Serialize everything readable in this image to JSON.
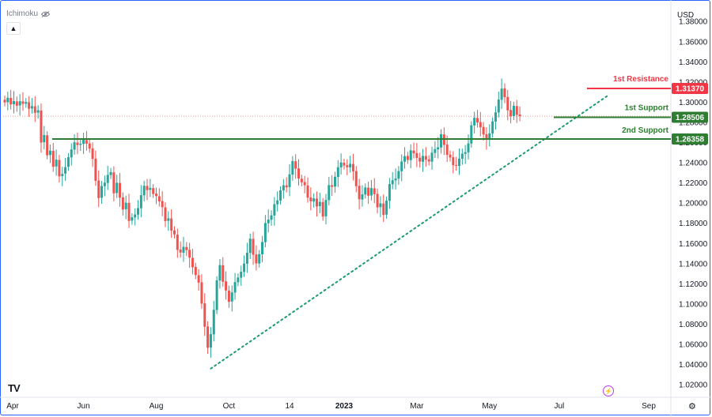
{
  "legend": {
    "label": "Ichimoku",
    "eye_icon": "eye-icon"
  },
  "collapse_icon": "chevron-up-icon",
  "currency": "USD",
  "logo": "TV",
  "bolt_icon": "lightning-icon",
  "gear_icon": "gear-icon",
  "colors": {
    "up": "#26a69a",
    "down": "#ef5350",
    "resistance": "#f23645",
    "support": "#2e7d32",
    "trend": "#1b9a70",
    "current_price_line": "#ef9a9a"
  },
  "chart_data": {
    "type": "candlestick",
    "x_ticks": [
      "Apr",
      "Jun",
      "Aug",
      "Oct",
      "14",
      "2023",
      "Mar",
      "May",
      "Jul",
      "Sep"
    ],
    "y_ticks": [
      "1.38000",
      "1.36000",
      "1.34000",
      "1.32000",
      "1.30000",
      "1.28000",
      "1.26000",
      "1.24000",
      "1.22000",
      "1.20000",
      "1.18000",
      "1.16000",
      "1.14000",
      "1.12000",
      "1.10000",
      "1.08000",
      "1.06000",
      "1.04000",
      "1.02000"
    ],
    "ylim": [
      1.0115,
      1.3935
    ],
    "levels": [
      {
        "name": "1st Resistance",
        "price_label": "1.31370",
        "value": 1.3137,
        "role": "resistance"
      },
      {
        "name": "1st Support",
        "price_label": "1.28506",
        "value": 1.28506,
        "role": "support"
      },
      {
        "name": "2nd Support",
        "price_label": "1.26358",
        "value": 1.26358,
        "role": "support"
      }
    ],
    "trendline": {
      "from": {
        "x_index": 68,
        "y": 1.036
      },
      "to": {
        "x_index": 199,
        "y": 1.3065
      }
    },
    "current_price": 1.2862,
    "x_count": 200,
    "closes": [
      1.2998,
      1.3045,
      1.2978,
      1.3011,
      1.2965,
      1.301,
      1.2984,
      1.3002,
      1.2935,
      1.2962,
      1.2895,
      1.2921,
      1.26,
      1.2675,
      1.2474,
      1.252,
      1.236,
      1.2431,
      1.2265,
      1.229,
      1.2357,
      1.2455,
      1.2532,
      1.2603,
      1.2576,
      1.2589,
      1.2628,
      1.259,
      1.254,
      1.2438,
      1.2221,
      1.205,
      1.217,
      1.2203,
      1.228,
      1.2308,
      1.2097,
      1.2202,
      1.2054,
      1.1937,
      1.2004,
      1.1823,
      1.186,
      1.1888,
      1.1951,
      1.2079,
      1.2172,
      1.2129,
      1.2151,
      1.2091,
      1.207,
      1.2017,
      1.196,
      1.1822,
      1.185,
      1.1727,
      1.169,
      1.1537,
      1.151,
      1.1567,
      1.1534,
      1.146,
      1.1365,
      1.1287,
      1.1212,
      1.1004,
      1.0775,
      1.0566,
      1.0701,
      1.0942,
      1.1235,
      1.1386,
      1.1221,
      1.1134,
      1.1022,
      1.1115,
      1.1218,
      1.1263,
      1.132,
      1.1401,
      1.1508,
      1.1648,
      1.1488,
      1.1403,
      1.1495,
      1.1615,
      1.1803,
      1.1837,
      1.1879,
      1.199,
      1.2027,
      1.2127,
      1.2178,
      1.2156,
      1.2285,
      1.2417,
      1.2341,
      1.2244,
      1.2206,
      1.2177,
      1.2054,
      1.2018,
      1.2047,
      1.1967,
      1.2013,
      1.1866,
      1.2031,
      1.2179,
      1.2161,
      1.2261,
      1.2356,
      1.2403,
      1.2373,
      1.2356,
      1.239,
      1.2315,
      1.2168,
      1.2038,
      1.2087,
      1.2155,
      1.2073,
      1.2149,
      1.2089,
      1.1958,
      1.1998,
      1.1883,
      1.2025,
      1.2189,
      1.2227,
      1.2244,
      1.2318,
      1.2413,
      1.2465,
      1.2428,
      1.2523,
      1.2493,
      1.2447,
      1.2412,
      1.2468,
      1.2431,
      1.2413,
      1.25,
      1.2535,
      1.2553,
      1.2683,
      1.2577,
      1.2478,
      1.2452,
      1.2375,
      1.2371,
      1.2442,
      1.249,
      1.2505,
      1.2592,
      1.2772,
      1.2846,
      1.28,
      1.2752,
      1.268,
      1.263,
      1.2692,
      1.281,
      1.29,
      1.3026,
      1.3135,
      1.305,
      1.292,
      1.286,
      1.2965,
      1.2875,
      1.2862
    ],
    "opens": [
      1.3025,
      1.3,
      1.3043,
      1.298,
      1.3008,
      1.2968,
      1.3008,
      1.2985,
      1.3,
      1.2938,
      1.296,
      1.2897,
      1.2918,
      1.2603,
      1.2672,
      1.2477,
      1.2518,
      1.2363,
      1.2428,
      1.2268,
      1.2292,
      1.236,
      1.2453,
      1.253,
      1.26,
      1.2578,
      1.2587,
      1.2625,
      1.2592,
      1.2543,
      1.2441,
      1.2224,
      1.2053,
      1.2168,
      1.22,
      1.2278,
      1.2305,
      1.21,
      1.22,
      1.2057,
      1.194,
      1.2002,
      1.1826,
      1.1858,
      1.1886,
      1.1949,
      1.2077,
      1.217,
      1.2132,
      1.2149,
      1.2094,
      1.2068,
      1.202,
      1.1958,
      1.1825,
      1.1848,
      1.173,
      1.1688,
      1.154,
      1.1508,
      1.1565,
      1.1537,
      1.1458,
      1.1368,
      1.1285,
      1.1215,
      1.1007,
      1.0778,
      1.0569,
      1.0699,
      1.094,
      1.1233,
      1.1384,
      1.1224,
      1.1132,
      1.1025,
      1.1113,
      1.1216,
      1.1261,
      1.1318,
      1.1399,
      1.1506,
      1.1646,
      1.1491,
      1.1401,
      1.1493,
      1.1613,
      1.18,
      1.1835,
      1.1877,
      1.1988,
      1.2025,
      1.2125,
      1.2176,
      1.2159,
      1.2283,
      1.2415,
      1.2344,
      1.2242,
      1.2209,
      1.2175,
      1.2057,
      1.2016,
      1.2045,
      1.197,
      1.2011,
      1.1869,
      1.2029,
      1.2177,
      1.2164,
      1.2259,
      1.2354,
      1.24,
      1.2376,
      1.2354,
      1.2388,
      1.2318,
      1.2171,
      1.2036,
      1.2085,
      1.2153,
      1.2076,
      1.2147,
      1.2092,
      1.1961,
      1.1996,
      1.1886,
      1.2023,
      1.2187,
      1.2225,
      1.2242,
      1.2316,
      1.2411,
      1.2468,
      1.2426,
      1.2521,
      1.2496,
      1.245,
      1.241,
      1.2466,
      1.2434,
      1.2411,
      1.2498,
      1.2533,
      1.2551,
      1.2681,
      1.258,
      1.2481,
      1.2455,
      1.2378,
      1.2369,
      1.244,
      1.2488,
      1.2503,
      1.259,
      1.277,
      1.2844,
      1.2803,
      1.2755,
      1.2683,
      1.2633,
      1.269,
      1.2808,
      1.2898,
      1.3024,
      1.3137,
      1.3052,
      1.2923,
      1.2863,
      1.2962,
      1.2878
    ]
  }
}
